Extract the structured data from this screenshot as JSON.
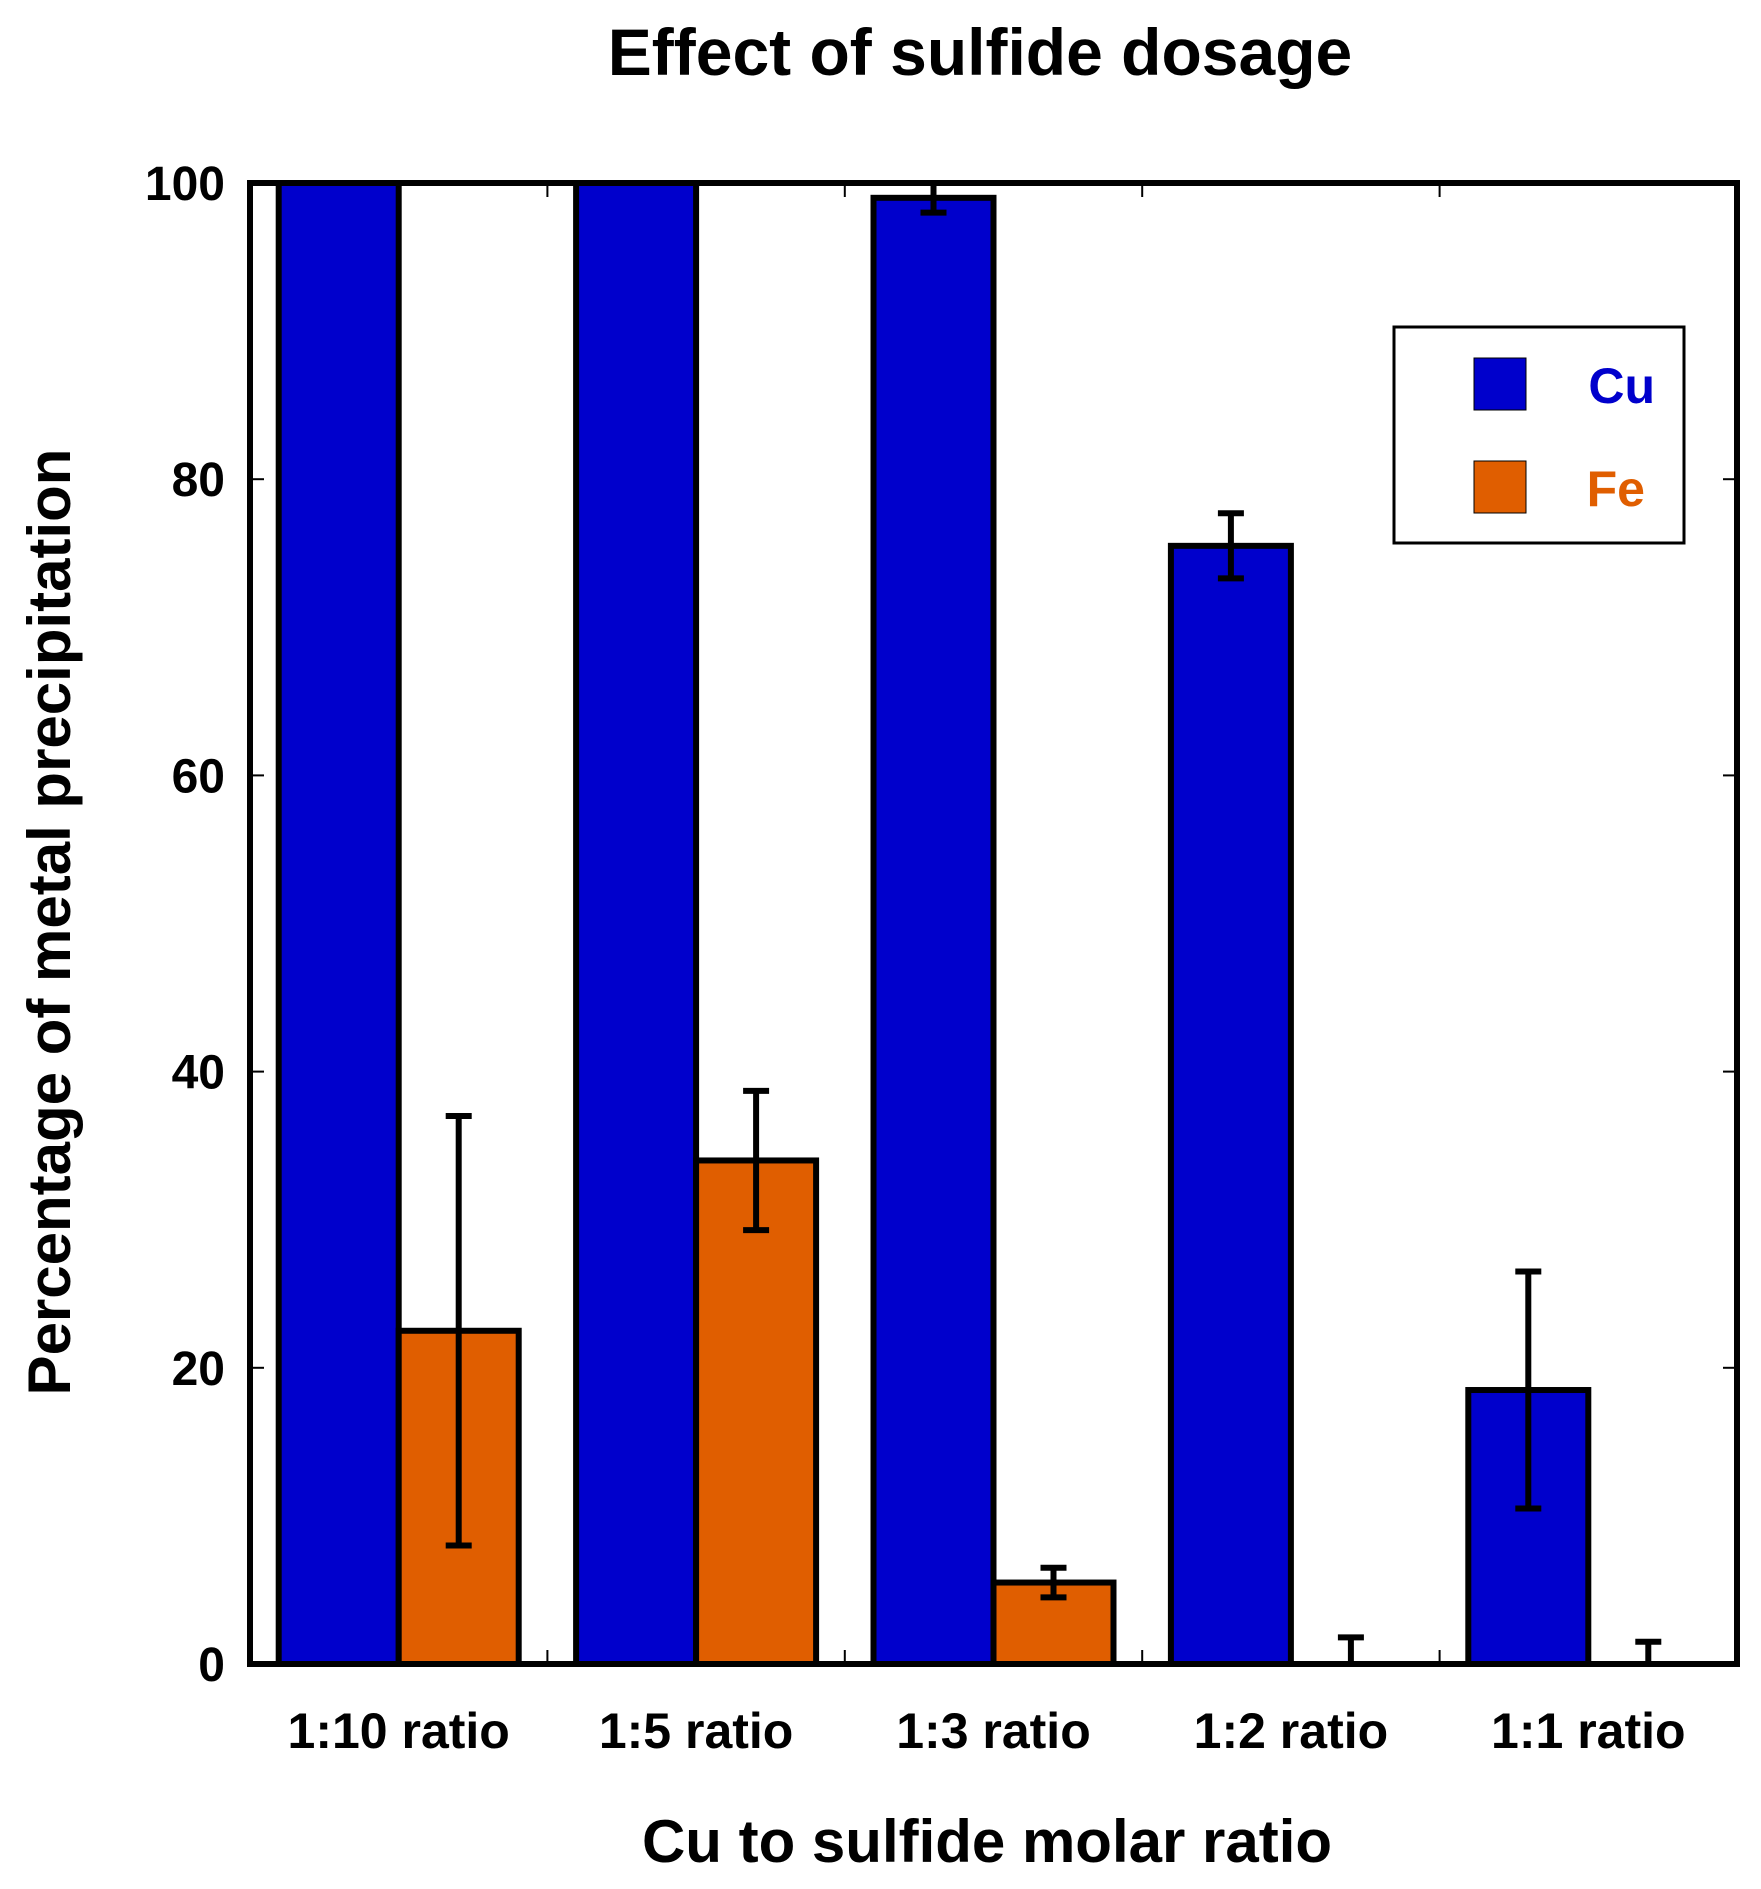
{
  "chart_data": {
    "type": "bar",
    "title": "Effect of sulfide dosage",
    "xlabel": "Cu to sulfide molar ratio",
    "ylabel": "Percentage of metal precipitation",
    "ylim": [
      0,
      100
    ],
    "yticks": [
      0,
      20,
      40,
      60,
      80,
      100
    ],
    "ytick_labels": [
      "0",
      "20",
      "40",
      "60",
      "80",
      "100"
    ],
    "categories": [
      "1:10 ratio",
      "1:5 ratio",
      "1:3 ratio",
      "1:2 ratio",
      "1:1 ratio"
    ],
    "series": [
      {
        "name": "Cu",
        "color": "#0000cc",
        "values": [
          100,
          100,
          99,
          75.5,
          18.5
        ],
        "errors": [
          0,
          0,
          1,
          2.2,
          8
        ]
      },
      {
        "name": "Fe",
        "color": "#e05e00",
        "values": [
          22.5,
          34,
          5.5,
          0,
          0
        ],
        "errors": [
          14.5,
          4.7,
          1,
          1.8,
          1.5
        ]
      }
    ],
    "legend": {
      "placement": "top-right",
      "entries": [
        "Cu",
        "Fe"
      ]
    },
    "grid": false
  }
}
